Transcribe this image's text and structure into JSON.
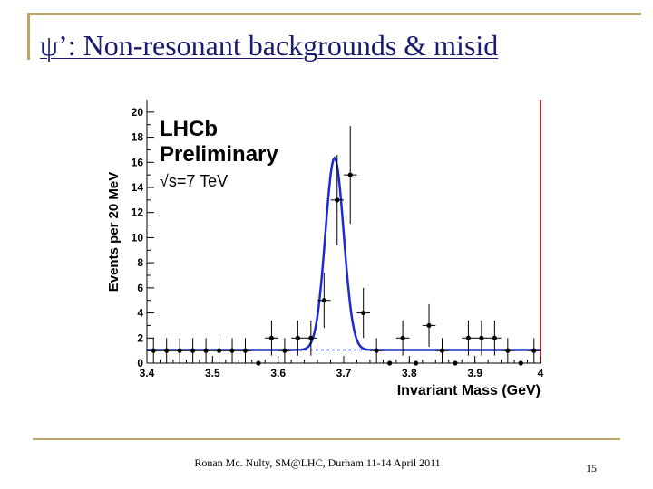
{
  "slide": {
    "title": "ψ’: Non-resonant backgrounds & misid",
    "footer": "Ronan Mc. Nulty, SM@LHC, Durham 11-14 April 2011",
    "page_number": "15"
  },
  "colors": {
    "accent_line": "#b9a56a",
    "title_text": "#1a1a6e",
    "fit_curve": "#1a2bd1",
    "background_line": "#1a2bd1",
    "frame_right": "#cc2222"
  },
  "chart_data": {
    "type": "scatter",
    "xlabel": "Invariant Mass (GeV)",
    "ylabel": "Events per 20 MeV",
    "xlim": [
      3.4,
      4.0
    ],
    "ylim": [
      0,
      21
    ],
    "x_ticks": [
      "3.4",
      "3.5",
      "3.6",
      "3.7",
      "3.8",
      "3.9",
      "4"
    ],
    "y_ticks": [
      "0",
      "2",
      "4",
      "6",
      "8",
      "10",
      "12",
      "14",
      "16",
      "18",
      "20"
    ],
    "annotations": [
      "LHCb",
      "Preliminary",
      "√s=7 TeV"
    ],
    "series": [
      {
        "kind": "data_points",
        "x": [
          3.41,
          3.43,
          3.45,
          3.47,
          3.49,
          3.51,
          3.53,
          3.55,
          3.57,
          3.59,
          3.61,
          3.63,
          3.65,
          3.67,
          3.69,
          3.71,
          3.73,
          3.75,
          3.77,
          3.79,
          3.81,
          3.83,
          3.85,
          3.87,
          3.89,
          3.91,
          3.93,
          3.95,
          3.97,
          3.99
        ],
        "y": [
          1,
          1,
          1,
          1,
          1,
          1,
          1,
          1,
          0,
          2,
          1,
          2,
          2,
          5,
          13,
          15,
          4,
          1,
          0,
          2,
          0,
          3,
          1,
          0,
          2,
          2,
          2,
          1,
          0,
          1
        ],
        "err": [
          1,
          1,
          1,
          1,
          1,
          1,
          1,
          1,
          0,
          1.4,
          1,
          1.4,
          1.4,
          2.2,
          3.6,
          3.9,
          2,
          1,
          0,
          1.4,
          0,
          1.7,
          1,
          0,
          1.4,
          1.4,
          1.4,
          1,
          0,
          1
        ]
      },
      {
        "kind": "fit_curve",
        "signal_mean": 3.686,
        "signal_sigma": 0.014,
        "signal_amplitude": 15.3,
        "background_level": 1.05
      },
      {
        "kind": "background_dashed",
        "level": 1.05
      }
    ]
  }
}
